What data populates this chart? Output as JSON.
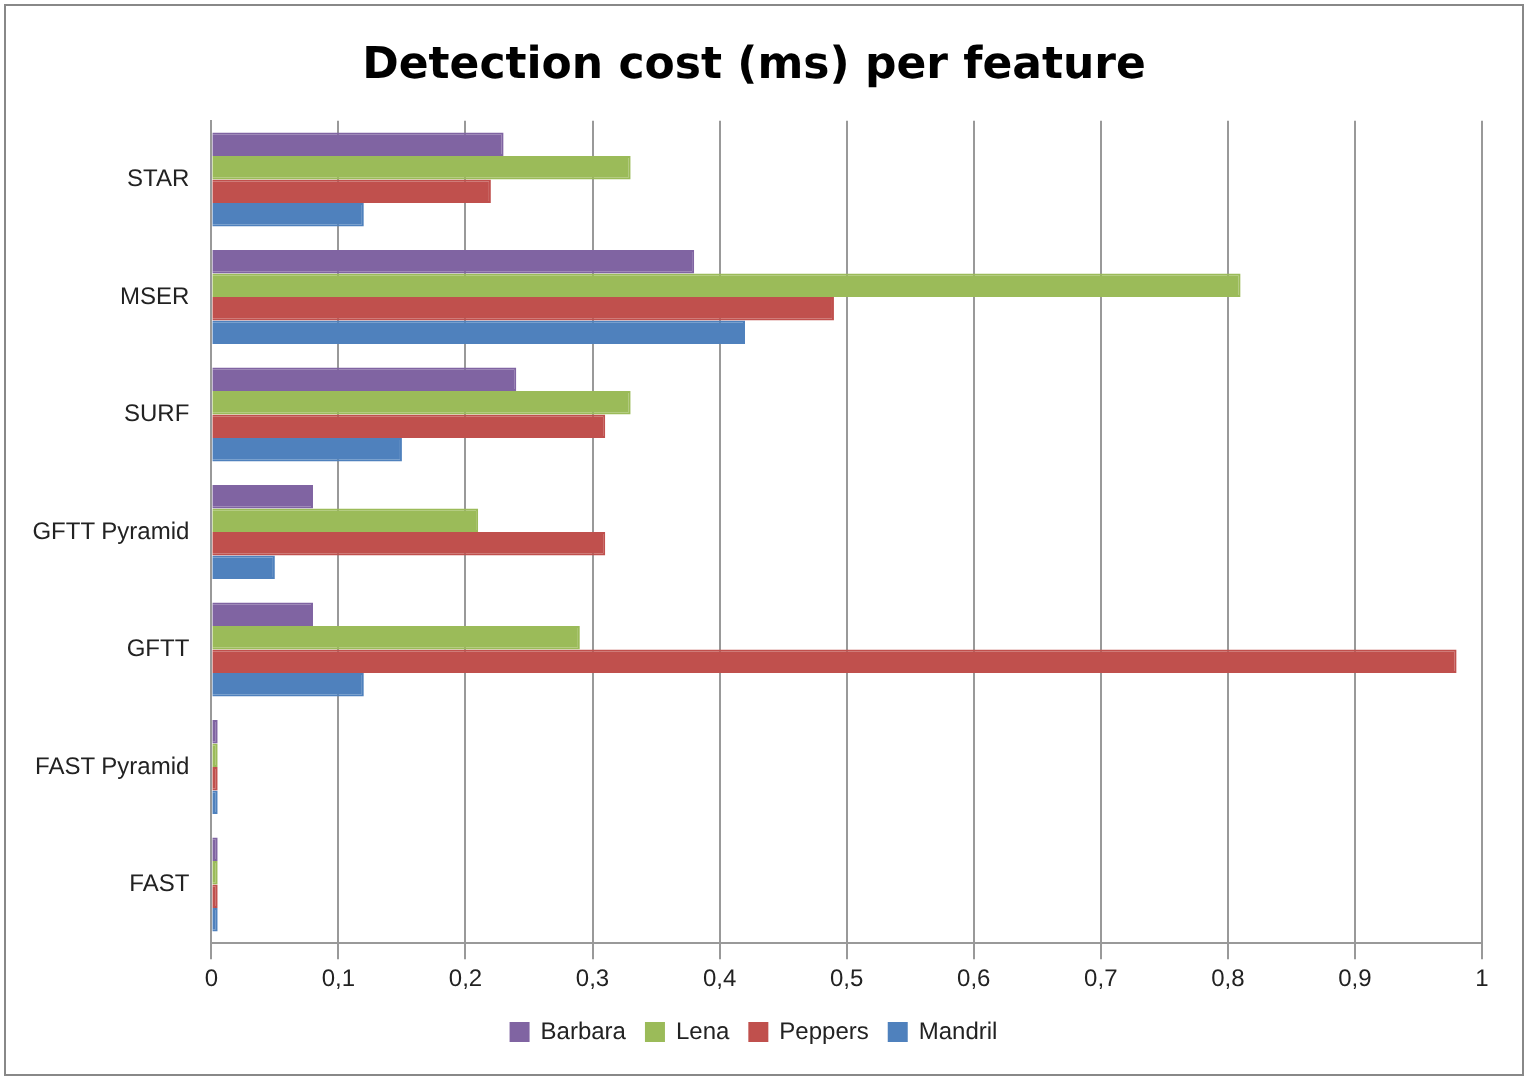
{
  "chart_data": {
    "type": "bar",
    "orientation": "horizontal",
    "title": "Detection cost (ms) per feature",
    "categories": [
      "STAR",
      "MSER",
      "SURF",
      "GFTT Pyramid",
      "GFTT",
      "FAST Pyramid",
      "FAST"
    ],
    "series": [
      {
        "name": "Barbara",
        "color": "#8064a2",
        "values": [
          0.23,
          0.38,
          0.24,
          0.08,
          0.08,
          0.005,
          0.005
        ]
      },
      {
        "name": "Lena",
        "color": "#9bbb59",
        "values": [
          0.33,
          0.81,
          0.33,
          0.21,
          0.29,
          0.005,
          0.005
        ]
      },
      {
        "name": "Peppers",
        "color": "#c0504d",
        "values": [
          0.22,
          0.49,
          0.31,
          0.31,
          0.98,
          0.005,
          0.005
        ]
      },
      {
        "name": "Mandril",
        "color": "#4f81bd",
        "values": [
          0.12,
          0.42,
          0.15,
          0.05,
          0.12,
          0.005,
          0.005
        ]
      }
    ],
    "xlim": [
      0,
      1
    ],
    "xticks": [
      0,
      {
        "value": 0.1,
        "label": "0,1"
      },
      {
        "value": 0.2,
        "label": "0,2"
      },
      {
        "value": 0.3,
        "label": "0,3"
      },
      {
        "value": 0.4,
        "label": "0,4"
      },
      {
        "value": 0.5,
        "label": "0,5"
      },
      {
        "value": 0.6,
        "label": "0,6"
      },
      {
        "value": 0.7,
        "label": "0,7"
      },
      {
        "value": 0.8,
        "label": "0,8"
      },
      {
        "value": 0.9,
        "label": "0,9"
      },
      1
    ],
    "grid": "x",
    "legend": "bottom"
  }
}
